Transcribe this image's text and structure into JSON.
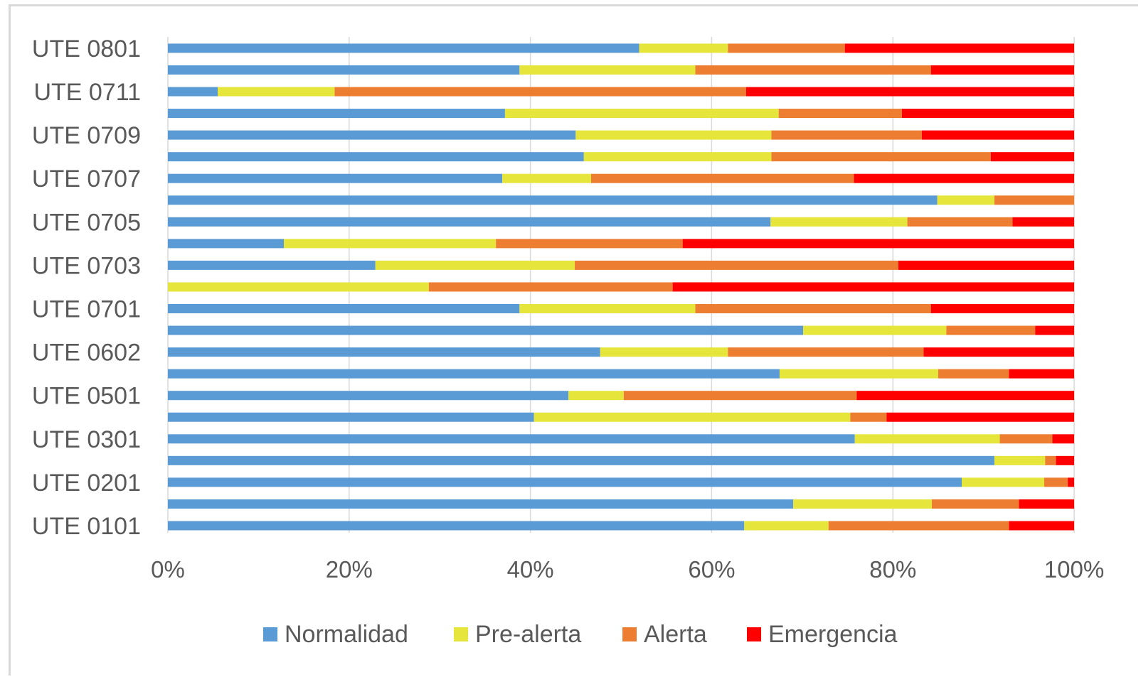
{
  "chart_data": {
    "type": "bar",
    "orientation": "horizontal",
    "stacked": "percent",
    "title": "",
    "xlabel": "",
    "ylabel": "",
    "xlim": [
      0,
      100
    ],
    "x_ticks": [
      "0%",
      "20%",
      "40%",
      "60%",
      "80%",
      "100%"
    ],
    "x_tick_values": [
      0,
      20,
      40,
      60,
      80,
      100
    ],
    "grid": "vertical major gridlines",
    "legend_position": "bottom",
    "categories": [
      "UTE 0101",
      "",
      "UTE 0201",
      "",
      "UTE 0301",
      "",
      "UTE 0501",
      "",
      "UTE 0602",
      "",
      "UTE 0701",
      "",
      "UTE 0703",
      "",
      "UTE 0705",
      "",
      "UTE 0707",
      "",
      "UTE 0709",
      "",
      "UTE 0711",
      "",
      "UTE 0801"
    ],
    "series": [
      {
        "name": "Normalidad",
        "color": "#5b9bd5",
        "values": [
          63.6,
          69.0,
          87.6,
          91.2,
          75.8,
          40.4,
          44.2,
          67.5,
          47.7,
          70.1,
          38.8,
          0,
          22.9,
          12.8,
          66.5,
          84.9,
          36.9,
          45.9,
          45.0,
          37.2,
          5.5,
          38.8,
          52.0
        ]
      },
      {
        "name": "Pre-alerta",
        "color": "#e6e53c",
        "values": [
          9.3,
          15.3,
          9.1,
          5.6,
          16.0,
          34.9,
          6.1,
          17.5,
          14.1,
          15.8,
          19.4,
          28.8,
          22.0,
          23.4,
          15.1,
          6.3,
          9.8,
          20.7,
          21.6,
          30.2,
          12.9,
          19.4,
          9.8
        ]
      },
      {
        "name": "Alerta",
        "color": "#ed7d31",
        "values": [
          19.9,
          9.6,
          2.6,
          1.2,
          5.8,
          4.0,
          25.7,
          7.8,
          21.6,
          9.8,
          26.0,
          26.9,
          35.7,
          20.6,
          11.6,
          8.8,
          29.0,
          24.2,
          16.6,
          13.6,
          45.4,
          26.0,
          12.9
        ]
      },
      {
        "name": "Emergencia",
        "color": "#ff0000",
        "values": [
          7.2,
          6.1,
          0.7,
          2.0,
          2.4,
          20.7,
          24.0,
          7.2,
          16.6,
          4.3,
          15.8,
          44.3,
          19.4,
          43.2,
          6.8,
          0,
          24.3,
          9.2,
          16.8,
          19.0,
          36.2,
          15.8,
          25.3
        ]
      }
    ]
  }
}
